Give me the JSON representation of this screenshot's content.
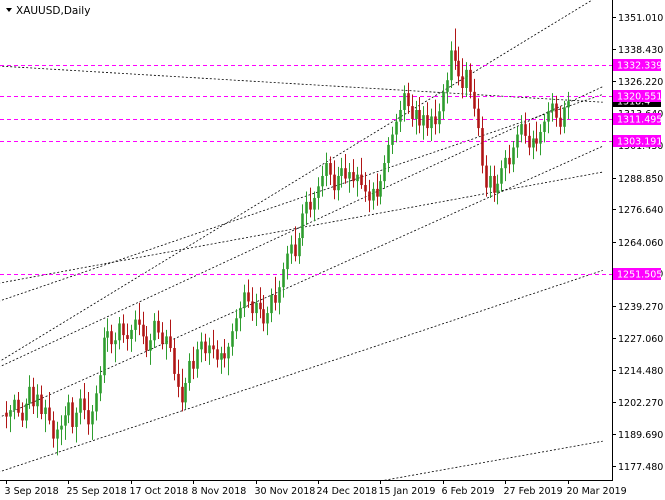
{
  "chart_data": {
    "type": "candlestick",
    "title": "XAUUSD,Daily",
    "ylim": [
      1172.0,
      1357.5
    ],
    "y_ticks": [
      "1351.010",
      "1338.430",
      "1326.220",
      "1313.640",
      "1301.430",
      "1288.850",
      "1276.640",
      "1264.060",
      "1251.850",
      "1239.270",
      "1227.060",
      "1214.480",
      "1202.270",
      "1189.690",
      "1177.480"
    ],
    "x_ticks": [
      "3 Sep 2018",
      "25 Sep 2018",
      "17 Oct 2018",
      "8 Nov 2018",
      "30 Nov 2018",
      "24 Dec 2018",
      "15 Jan 2019",
      "6 Feb 2019",
      "27 Feb 2019",
      "20 Mar 2019"
    ],
    "x_tick_index": [
      0,
      16,
      32,
      48,
      64,
      80,
      96,
      112,
      128,
      144
    ],
    "grid": false,
    "colors": {
      "bull": "#2e9d2e",
      "bear": "#b01515",
      "level": "#ff00ff",
      "trend": "#000000",
      "current_price_box": "#000000"
    },
    "horizontal_levels": [
      {
        "value": 1332.339,
        "label": "1332.339"
      },
      {
        "value": 1320.551,
        "label": "1320.551"
      },
      {
        "value": 1311.495,
        "label": "1311.495"
      },
      {
        "value": 1303.191,
        "label": "1303.191"
      },
      {
        "value": 1251.505,
        "label": "1251.505"
      }
    ],
    "current_price": {
      "value": 1318.4,
      "label": "1318.4"
    },
    "trendlines": [
      {
        "p1": [
          -2,
          1217.5
        ],
        "p2": [
          153,
          1360
        ]
      },
      {
        "p1": [
          -2,
          1215.5
        ],
        "p2": [
          153,
          1324
        ]
      },
      {
        "p1": [
          -2,
          1196.0
        ],
        "p2": [
          153,
          1301
        ]
      },
      {
        "p1": [
          -2,
          1175.0
        ],
        "p2": [
          153,
          1253
        ]
      },
      {
        "p1": [
          -2,
          1332.0
        ],
        "p2": [
          153,
          1318
        ]
      },
      {
        "p1": [
          -2,
          1248.0
        ],
        "p2": [
          153,
          1291
        ]
      },
      {
        "p1": [
          -2,
          1241.0
        ],
        "p2": [
          153,
          1321
        ]
      },
      {
        "p1": [
          90,
          1170.0
        ],
        "p2": [
          153,
          1187
        ]
      }
    ],
    "candles": [
      {
        "o": 1198.0,
        "h": 1202.5,
        "l": 1192.0,
        "c": 1196.5
      },
      {
        "o": 1196.5,
        "h": 1201.0,
        "l": 1190.5,
        "c": 1199.0
      },
      {
        "o": 1199.0,
        "h": 1205.0,
        "l": 1195.5,
        "c": 1203.0
      },
      {
        "o": 1203.0,
        "h": 1206.0,
        "l": 1196.5,
        "c": 1198.0
      },
      {
        "o": 1198.0,
        "h": 1202.0,
        "l": 1192.5,
        "c": 1195.0
      },
      {
        "o": 1195.0,
        "h": 1203.5,
        "l": 1192.0,
        "c": 1201.5
      },
      {
        "o": 1201.5,
        "h": 1212.5,
        "l": 1199.5,
        "c": 1208.0
      },
      {
        "o": 1208.0,
        "h": 1211.5,
        "l": 1197.5,
        "c": 1200.5
      },
      {
        "o": 1200.5,
        "h": 1209.0,
        "l": 1196.0,
        "c": 1205.0
      },
      {
        "o": 1205.0,
        "h": 1208.5,
        "l": 1195.5,
        "c": 1197.5
      },
      {
        "o": 1197.5,
        "h": 1203.0,
        "l": 1190.5,
        "c": 1200.0
      },
      {
        "o": 1200.0,
        "h": 1206.0,
        "l": 1193.5,
        "c": 1195.0
      },
      {
        "o": 1195.0,
        "h": 1198.5,
        "l": 1184.5,
        "c": 1188.0
      },
      {
        "o": 1188.0,
        "h": 1194.5,
        "l": 1181.5,
        "c": 1191.5
      },
      {
        "o": 1191.5,
        "h": 1197.0,
        "l": 1185.5,
        "c": 1193.0
      },
      {
        "o": 1193.0,
        "h": 1200.5,
        "l": 1187.5,
        "c": 1197.0
      },
      {
        "o": 1197.0,
        "h": 1205.0,
        "l": 1194.0,
        "c": 1202.0
      },
      {
        "o": 1202.0,
        "h": 1204.0,
        "l": 1190.0,
        "c": 1192.5
      },
      {
        "o": 1192.5,
        "h": 1200.0,
        "l": 1186.5,
        "c": 1198.0
      },
      {
        "o": 1198.0,
        "h": 1207.0,
        "l": 1193.5,
        "c": 1203.5
      },
      {
        "o": 1203.5,
        "h": 1209.5,
        "l": 1195.5,
        "c": 1199.0
      },
      {
        "o": 1199.0,
        "h": 1206.0,
        "l": 1189.5,
        "c": 1193.5
      },
      {
        "o": 1193.5,
        "h": 1201.0,
        "l": 1187.5,
        "c": 1198.5
      },
      {
        "o": 1198.5,
        "h": 1208.5,
        "l": 1195.0,
        "c": 1205.5
      },
      {
        "o": 1205.5,
        "h": 1216.0,
        "l": 1202.5,
        "c": 1212.5
      },
      {
        "o": 1212.5,
        "h": 1231.0,
        "l": 1209.5,
        "c": 1227.0
      },
      {
        "o": 1227.0,
        "h": 1234.5,
        "l": 1221.5,
        "c": 1229.5
      },
      {
        "o": 1229.5,
        "h": 1232.0,
        "l": 1221.0,
        "c": 1224.5
      },
      {
        "o": 1224.5,
        "h": 1229.0,
        "l": 1217.5,
        "c": 1226.0
      },
      {
        "o": 1226.0,
        "h": 1235.0,
        "l": 1222.5,
        "c": 1232.5
      },
      {
        "o": 1232.5,
        "h": 1236.0,
        "l": 1225.0,
        "c": 1228.0
      },
      {
        "o": 1228.0,
        "h": 1232.5,
        "l": 1222.0,
        "c": 1226.5
      },
      {
        "o": 1226.5,
        "h": 1232.0,
        "l": 1221.5,
        "c": 1230.0
      },
      {
        "o": 1230.0,
        "h": 1237.5,
        "l": 1225.5,
        "c": 1234.0
      },
      {
        "o": 1234.0,
        "h": 1240.5,
        "l": 1228.0,
        "c": 1232.0
      },
      {
        "o": 1232.0,
        "h": 1237.0,
        "l": 1224.5,
        "c": 1227.5
      },
      {
        "o": 1227.5,
        "h": 1231.5,
        "l": 1219.5,
        "c": 1222.0
      },
      {
        "o": 1222.0,
        "h": 1228.5,
        "l": 1216.5,
        "c": 1226.0
      },
      {
        "o": 1226.0,
        "h": 1236.5,
        "l": 1223.0,
        "c": 1233.5
      },
      {
        "o": 1233.5,
        "h": 1237.5,
        "l": 1226.5,
        "c": 1229.0
      },
      {
        "o": 1229.0,
        "h": 1233.0,
        "l": 1222.5,
        "c": 1224.5
      },
      {
        "o": 1224.5,
        "h": 1230.0,
        "l": 1218.5,
        "c": 1227.5
      },
      {
        "o": 1227.5,
        "h": 1234.0,
        "l": 1221.5,
        "c": 1223.0
      },
      {
        "o": 1223.0,
        "h": 1226.5,
        "l": 1210.5,
        "c": 1213.0
      },
      {
        "o": 1213.0,
        "h": 1218.5,
        "l": 1204.0,
        "c": 1208.0
      },
      {
        "o": 1208.0,
        "h": 1215.0,
        "l": 1198.5,
        "c": 1202.0
      },
      {
        "o": 1202.0,
        "h": 1211.5,
        "l": 1199.5,
        "c": 1209.5
      },
      {
        "o": 1209.5,
        "h": 1221.0,
        "l": 1206.5,
        "c": 1218.0
      },
      {
        "o": 1218.0,
        "h": 1223.5,
        "l": 1211.0,
        "c": 1215.0
      },
      {
        "o": 1215.0,
        "h": 1225.5,
        "l": 1211.5,
        "c": 1222.5
      },
      {
        "o": 1222.5,
        "h": 1229.0,
        "l": 1217.5,
        "c": 1225.5
      },
      {
        "o": 1225.5,
        "h": 1228.5,
        "l": 1218.0,
        "c": 1221.0
      },
      {
        "o": 1221.0,
        "h": 1227.0,
        "l": 1216.5,
        "c": 1224.0
      },
      {
        "o": 1224.0,
        "h": 1230.0,
        "l": 1219.0,
        "c": 1222.5
      },
      {
        "o": 1222.5,
        "h": 1226.0,
        "l": 1215.5,
        "c": 1218.5
      },
      {
        "o": 1218.5,
        "h": 1223.5,
        "l": 1213.0,
        "c": 1221.0
      },
      {
        "o": 1221.0,
        "h": 1226.5,
        "l": 1215.5,
        "c": 1219.0
      },
      {
        "o": 1219.0,
        "h": 1225.0,
        "l": 1212.5,
        "c": 1223.5
      },
      {
        "o": 1223.5,
        "h": 1232.5,
        "l": 1220.0,
        "c": 1229.5
      },
      {
        "o": 1229.5,
        "h": 1238.0,
        "l": 1226.5,
        "c": 1234.5
      },
      {
        "o": 1234.5,
        "h": 1241.0,
        "l": 1229.5,
        "c": 1238.5
      },
      {
        "o": 1238.5,
        "h": 1247.5,
        "l": 1235.0,
        "c": 1244.5
      },
      {
        "o": 1244.5,
        "h": 1249.5,
        "l": 1238.5,
        "c": 1241.0
      },
      {
        "o": 1241.0,
        "h": 1246.5,
        "l": 1233.5,
        "c": 1236.5
      },
      {
        "o": 1236.5,
        "h": 1244.0,
        "l": 1231.5,
        "c": 1240.5
      },
      {
        "o": 1240.5,
        "h": 1246.5,
        "l": 1234.5,
        "c": 1238.0
      },
      {
        "o": 1238.0,
        "h": 1243.5,
        "l": 1229.5,
        "c": 1232.5
      },
      {
        "o": 1232.5,
        "h": 1239.0,
        "l": 1228.0,
        "c": 1236.5
      },
      {
        "o": 1236.5,
        "h": 1246.0,
        "l": 1233.0,
        "c": 1243.5
      },
      {
        "o": 1243.5,
        "h": 1250.5,
        "l": 1237.5,
        "c": 1240.5
      },
      {
        "o": 1240.5,
        "h": 1249.0,
        "l": 1236.0,
        "c": 1246.5
      },
      {
        "o": 1246.5,
        "h": 1256.0,
        "l": 1242.5,
        "c": 1253.5
      },
      {
        "o": 1253.5,
        "h": 1262.5,
        "l": 1249.5,
        "c": 1259.5
      },
      {
        "o": 1259.5,
        "h": 1266.5,
        "l": 1255.5,
        "c": 1263.0
      },
      {
        "o": 1263.0,
        "h": 1270.0,
        "l": 1256.5,
        "c": 1258.5
      },
      {
        "o": 1258.5,
        "h": 1267.5,
        "l": 1255.5,
        "c": 1265.5
      },
      {
        "o": 1265.5,
        "h": 1278.5,
        "l": 1262.5,
        "c": 1275.0
      },
      {
        "o": 1275.0,
        "h": 1283.5,
        "l": 1270.5,
        "c": 1279.5
      },
      {
        "o": 1279.5,
        "h": 1285.0,
        "l": 1273.5,
        "c": 1276.5
      },
      {
        "o": 1276.5,
        "h": 1283.5,
        "l": 1272.0,
        "c": 1281.0
      },
      {
        "o": 1281.0,
        "h": 1289.0,
        "l": 1276.5,
        "c": 1285.5
      },
      {
        "o": 1285.5,
        "h": 1293.5,
        "l": 1281.5,
        "c": 1289.5
      },
      {
        "o": 1289.5,
        "h": 1298.5,
        "l": 1285.5,
        "c": 1294.5
      },
      {
        "o": 1294.5,
        "h": 1297.0,
        "l": 1286.0,
        "c": 1290.0
      },
      {
        "o": 1290.0,
        "h": 1295.5,
        "l": 1280.5,
        "c": 1284.0
      },
      {
        "o": 1284.0,
        "h": 1293.0,
        "l": 1280.0,
        "c": 1289.5
      },
      {
        "o": 1289.5,
        "h": 1296.5,
        "l": 1285.0,
        "c": 1292.5
      },
      {
        "o": 1292.5,
        "h": 1298.0,
        "l": 1286.5,
        "c": 1288.5
      },
      {
        "o": 1288.5,
        "h": 1294.5,
        "l": 1283.0,
        "c": 1291.0
      },
      {
        "o": 1291.0,
        "h": 1296.0,
        "l": 1285.0,
        "c": 1287.5
      },
      {
        "o": 1287.5,
        "h": 1293.0,
        "l": 1281.5,
        "c": 1290.0
      },
      {
        "o": 1290.0,
        "h": 1296.5,
        "l": 1284.5,
        "c": 1286.0
      },
      {
        "o": 1286.0,
        "h": 1291.0,
        "l": 1279.5,
        "c": 1283.5
      },
      {
        "o": 1283.5,
        "h": 1288.0,
        "l": 1275.5,
        "c": 1280.0
      },
      {
        "o": 1280.0,
        "h": 1287.0,
        "l": 1276.5,
        "c": 1284.5
      },
      {
        "o": 1284.5,
        "h": 1290.5,
        "l": 1278.0,
        "c": 1281.5
      },
      {
        "o": 1281.5,
        "h": 1290.0,
        "l": 1278.5,
        "c": 1287.5
      },
      {
        "o": 1287.5,
        "h": 1297.5,
        "l": 1284.5,
        "c": 1294.5
      },
      {
        "o": 1294.5,
        "h": 1304.5,
        "l": 1291.0,
        "c": 1301.5
      },
      {
        "o": 1301.5,
        "h": 1308.5,
        "l": 1298.0,
        "c": 1305.5
      },
      {
        "o": 1305.5,
        "h": 1313.5,
        "l": 1302.5,
        "c": 1310.5
      },
      {
        "o": 1310.5,
        "h": 1318.5,
        "l": 1306.5,
        "c": 1315.0
      },
      {
        "o": 1315.0,
        "h": 1324.5,
        "l": 1310.5,
        "c": 1321.5
      },
      {
        "o": 1321.5,
        "h": 1325.5,
        "l": 1313.5,
        "c": 1316.5
      },
      {
        "o": 1316.5,
        "h": 1321.0,
        "l": 1308.5,
        "c": 1311.5
      },
      {
        "o": 1311.5,
        "h": 1318.5,
        "l": 1305.5,
        "c": 1315.0
      },
      {
        "o": 1315.0,
        "h": 1320.0,
        "l": 1306.0,
        "c": 1309.0
      },
      {
        "o": 1309.0,
        "h": 1316.5,
        "l": 1303.5,
        "c": 1313.0
      },
      {
        "o": 1313.0,
        "h": 1318.0,
        "l": 1305.0,
        "c": 1308.0
      },
      {
        "o": 1308.0,
        "h": 1315.5,
        "l": 1303.0,
        "c": 1312.5
      },
      {
        "o": 1312.5,
        "h": 1319.0,
        "l": 1305.5,
        "c": 1309.5
      },
      {
        "o": 1309.5,
        "h": 1317.5,
        "l": 1306.0,
        "c": 1314.5
      },
      {
        "o": 1314.5,
        "h": 1325.0,
        "l": 1311.5,
        "c": 1322.0
      },
      {
        "o": 1322.0,
        "h": 1329.5,
        "l": 1317.5,
        "c": 1326.5
      },
      {
        "o": 1326.5,
        "h": 1341.5,
        "l": 1323.5,
        "c": 1338.0
      },
      {
        "o": 1338.0,
        "h": 1346.5,
        "l": 1330.5,
        "c": 1334.0
      },
      {
        "o": 1334.0,
        "h": 1339.5,
        "l": 1324.5,
        "c": 1328.0
      },
      {
        "o": 1328.0,
        "h": 1335.0,
        "l": 1319.5,
        "c": 1323.5
      },
      {
        "o": 1323.5,
        "h": 1333.5,
        "l": 1320.0,
        "c": 1330.5
      },
      {
        "o": 1330.5,
        "h": 1333.0,
        "l": 1319.5,
        "c": 1322.0
      },
      {
        "o": 1322.0,
        "h": 1327.0,
        "l": 1312.5,
        "c": 1315.5
      },
      {
        "o": 1315.5,
        "h": 1319.5,
        "l": 1305.0,
        "c": 1308.0
      },
      {
        "o": 1308.0,
        "h": 1312.5,
        "l": 1290.5,
        "c": 1293.5
      },
      {
        "o": 1293.5,
        "h": 1297.5,
        "l": 1281.5,
        "c": 1285.0
      },
      {
        "o": 1285.0,
        "h": 1293.5,
        "l": 1281.0,
        "c": 1289.5
      },
      {
        "o": 1289.5,
        "h": 1293.5,
        "l": 1279.5,
        "c": 1283.0
      },
      {
        "o": 1283.0,
        "h": 1290.0,
        "l": 1278.5,
        "c": 1286.5
      },
      {
        "o": 1286.5,
        "h": 1295.5,
        "l": 1283.5,
        "c": 1292.5
      },
      {
        "o": 1292.5,
        "h": 1299.5,
        "l": 1287.5,
        "c": 1296.5
      },
      {
        "o": 1296.5,
        "h": 1301.5,
        "l": 1290.5,
        "c": 1294.0
      },
      {
        "o": 1294.0,
        "h": 1303.0,
        "l": 1291.0,
        "c": 1300.5
      },
      {
        "o": 1300.5,
        "h": 1308.5,
        "l": 1296.5,
        "c": 1305.5
      },
      {
        "o": 1305.5,
        "h": 1313.0,
        "l": 1302.5,
        "c": 1309.5
      },
      {
        "o": 1309.5,
        "h": 1314.0,
        "l": 1302.0,
        "c": 1305.0
      },
      {
        "o": 1305.0,
        "h": 1310.0,
        "l": 1297.5,
        "c": 1300.5
      },
      {
        "o": 1300.5,
        "h": 1307.0,
        "l": 1296.0,
        "c": 1304.0
      },
      {
        "o": 1304.0,
        "h": 1310.5,
        "l": 1299.0,
        "c": 1302.0
      },
      {
        "o": 1302.0,
        "h": 1309.5,
        "l": 1297.5,
        "c": 1306.5
      },
      {
        "o": 1306.5,
        "h": 1313.5,
        "l": 1302.5,
        "c": 1310.5
      },
      {
        "o": 1310.5,
        "h": 1318.0,
        "l": 1306.0,
        "c": 1314.5
      },
      {
        "o": 1314.5,
        "h": 1321.5,
        "l": 1310.5,
        "c": 1317.5
      },
      {
        "o": 1317.5,
        "h": 1320.5,
        "l": 1308.5,
        "c": 1312.0
      },
      {
        "o": 1312.0,
        "h": 1316.5,
        "l": 1305.5,
        "c": 1308.5
      },
      {
        "o": 1308.5,
        "h": 1318.5,
        "l": 1306.0,
        "c": 1316.0
      },
      {
        "o": 1316.0,
        "h": 1322.0,
        "l": 1311.5,
        "c": 1318.4
      }
    ]
  }
}
